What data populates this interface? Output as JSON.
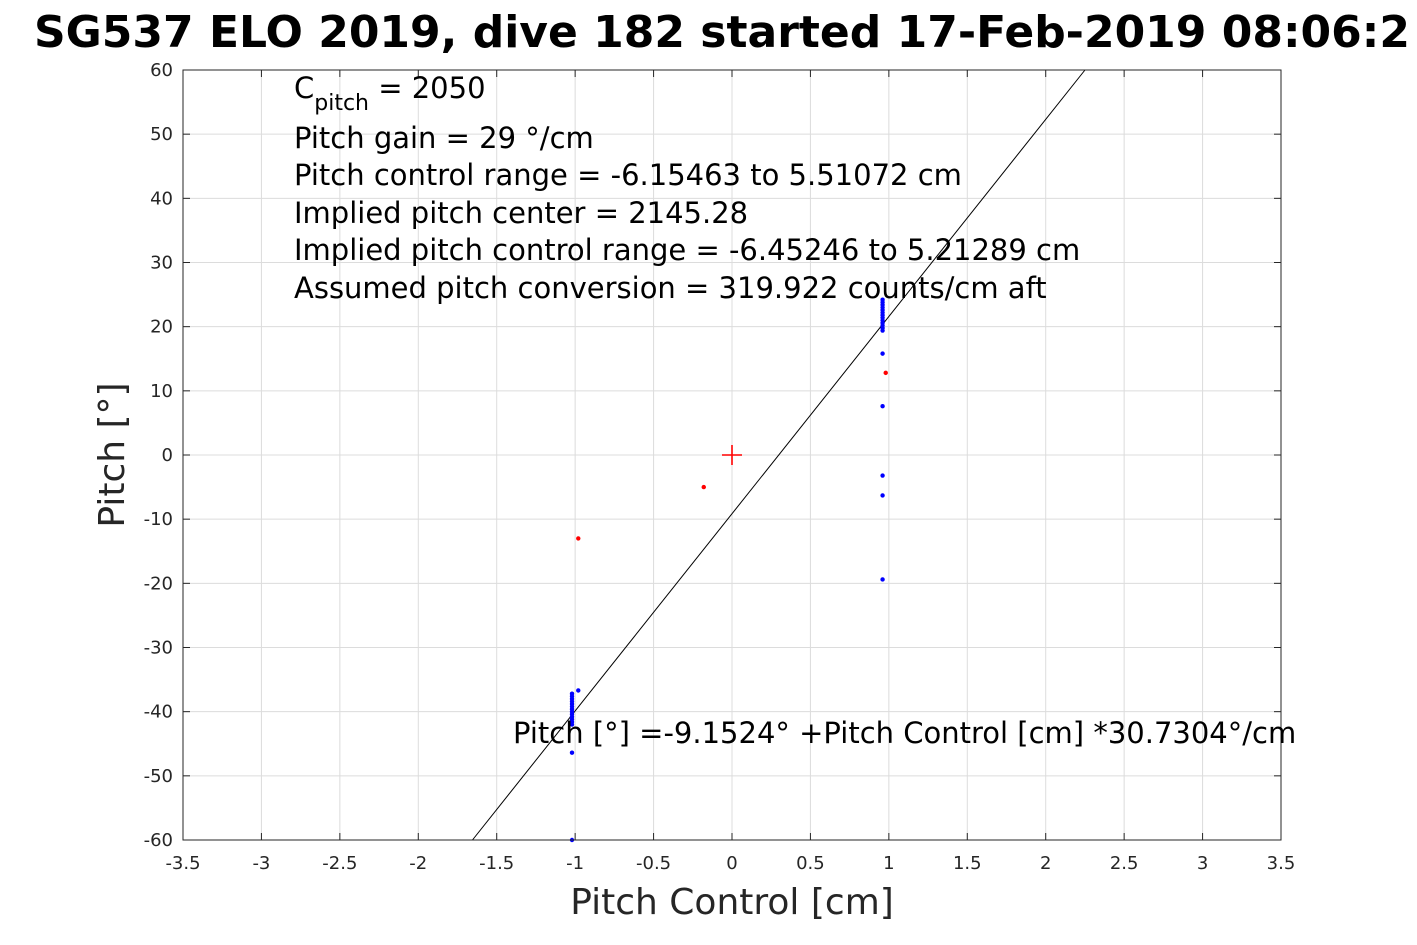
{
  "chart_data": {
    "type": "scatter",
    "title": "SG537 ELO 2019, dive 182 started 17-Feb-2019 08:06:2",
    "xlabel": "Pitch Control [cm]",
    "ylabel": "Pitch [°]",
    "xlim": [
      -3.5,
      3.5
    ],
    "ylim": [
      -60,
      60
    ],
    "grid": true,
    "x_ticks": [
      -3.5,
      -3,
      -2.5,
      -2,
      -1.5,
      -1,
      -0.5,
      0,
      0.5,
      1,
      1.5,
      2,
      2.5,
      3,
      3.5
    ],
    "x_tick_labels": [
      "-3.5",
      "-3",
      "-2.5",
      "-2",
      "-1.5",
      "-1",
      "-0.5",
      "0",
      "0.5",
      "1",
      "1.5",
      "2",
      "2.5",
      "3",
      "3.5"
    ],
    "y_ticks": [
      60,
      50,
      40,
      30,
      20,
      10,
      0,
      -10,
      -20,
      -30,
      -40,
      -50,
      -60
    ],
    "y_tick_labels": [
      "60",
      "50",
      "40",
      "30",
      "20",
      "10",
      "0",
      "-10",
      "-20",
      "-30",
      "-40",
      "-50",
      "-60"
    ],
    "annotations": {
      "c_pitch_main": "C",
      "c_pitch_sub": "pitch",
      "c_pitch_value": " = 2050",
      "lines": [
        "Pitch gain = 29 °/cm",
        "Pitch control range = -6.15463 to 5.51072 cm",
        "Implied pitch center = 2145.28",
        "Implied pitch control range = -6.45246 to 5.21289 cm",
        "Assumed pitch conversion = 319.922 counts/cm aft"
      ],
      "fit_label": "Pitch [°] =-9.1524° +Pitch Control [cm] *30.7304°/cm"
    },
    "fit_line": {
      "intercept": -9.1524,
      "slope": 30.7304
    },
    "center_marker": {
      "x": 0,
      "y": 0,
      "color": "#ff0000"
    },
    "series": [
      {
        "color": "#0000ff",
        "points": [
          [
            0.96,
            24.2
          ],
          [
            0.96,
            23.8
          ],
          [
            0.96,
            23.4
          ],
          [
            0.96,
            23.0
          ],
          [
            0.96,
            22.6
          ],
          [
            0.96,
            22.2
          ],
          [
            0.96,
            21.8
          ],
          [
            0.96,
            21.4
          ],
          [
            0.96,
            21.0
          ],
          [
            0.96,
            20.6
          ],
          [
            0.96,
            20.2
          ],
          [
            0.96,
            19.8
          ],
          [
            0.96,
            19.4
          ],
          [
            0.96,
            15.8
          ],
          [
            0.96,
            7.6
          ],
          [
            0.96,
            -3.2
          ],
          [
            0.96,
            -6.3
          ],
          [
            0.96,
            -19.4
          ],
          [
            -1.02,
            -37.2
          ],
          [
            -1.02,
            -37.6
          ],
          [
            -1.02,
            -38.0
          ],
          [
            -1.02,
            -38.4
          ],
          [
            -1.02,
            -38.8
          ],
          [
            -1.02,
            -39.2
          ],
          [
            -1.02,
            -39.6
          ],
          [
            -1.02,
            -40.0
          ],
          [
            -1.02,
            -40.4
          ],
          [
            -1.02,
            -40.8
          ],
          [
            -1.02,
            -41.2
          ],
          [
            -1.02,
            -41.6
          ],
          [
            -1.02,
            -42.0
          ],
          [
            -0.98,
            -36.7
          ],
          [
            -1.02,
            -46.4
          ],
          [
            -1.02,
            -60.0
          ]
        ]
      },
      {
        "color": "#ff0000",
        "points": [
          [
            0.98,
            12.8
          ],
          [
            -0.18,
            -5.0
          ],
          [
            -0.98,
            -13.0
          ]
        ]
      }
    ]
  }
}
